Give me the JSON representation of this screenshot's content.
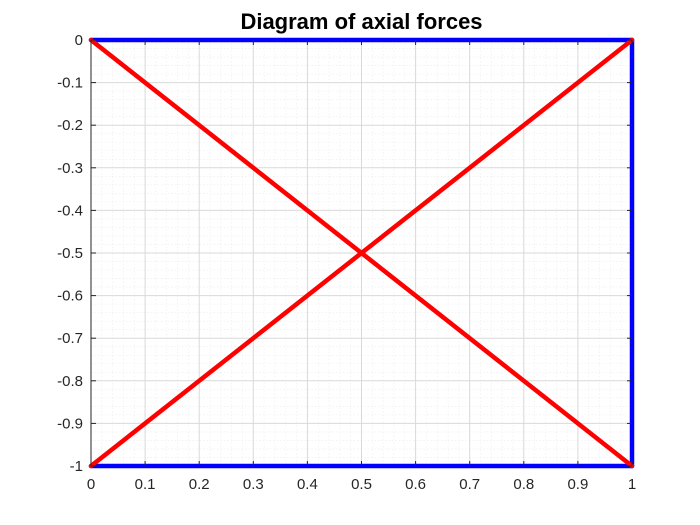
{
  "chart_data": {
    "type": "line",
    "title": "Diagram of axial forces",
    "xlabel": "",
    "ylabel": "",
    "xlim": [
      0,
      1
    ],
    "ylim": [
      -1,
      0
    ],
    "grid": true,
    "minor_grid": true,
    "x_ticks": [
      0,
      0.1,
      0.2,
      0.3,
      0.4,
      0.5,
      0.6,
      0.7,
      0.8,
      0.9,
      1
    ],
    "x_tick_labels": [
      "0",
      "0.1",
      "0.2",
      "0.3",
      "0.4",
      "0.5",
      "0.6",
      "0.7",
      "0.8",
      "0.9",
      "1"
    ],
    "y_ticks": [
      0,
      -0.1,
      -0.2,
      -0.3,
      -0.4,
      -0.5,
      -0.6,
      -0.7,
      -0.8,
      -0.9,
      -1
    ],
    "y_tick_labels": [
      "0",
      "-0.1",
      "-0.2",
      "-0.3",
      "-0.4",
      "-0.5",
      "-0.6",
      "-0.7",
      "-0.8",
      "-0.9",
      "-1"
    ],
    "series": [
      {
        "color": "#0000ff",
        "points": [
          [
            0,
            0
          ],
          [
            1,
            0
          ]
        ]
      },
      {
        "color": "#0000ff",
        "points": [
          [
            1,
            0
          ],
          [
            1,
            -1
          ]
        ]
      },
      {
        "color": "#0000ff",
        "points": [
          [
            1,
            -1
          ],
          [
            0,
            -1
          ]
        ]
      },
      {
        "color": "#ff0000",
        "points": [
          [
            0,
            0
          ],
          [
            1,
            -1
          ]
        ]
      },
      {
        "color": "#ff0000",
        "points": [
          [
            0,
            -1
          ],
          [
            1,
            0
          ]
        ]
      }
    ]
  }
}
